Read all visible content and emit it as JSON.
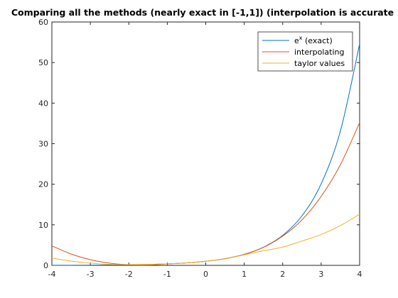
{
  "chart_data": {
    "type": "line",
    "title": "Comparing all the methods  (nearly exact in [-1,1]) (interpolation is accurate",
    "xlabel": "",
    "ylabel": "",
    "xlim": [
      -4,
      4
    ],
    "ylim": [
      0,
      60
    ],
    "xticks": [
      "-4",
      "-3",
      "-2",
      "-1",
      "0",
      "1",
      "2",
      "3",
      "4"
    ],
    "yticks": [
      "0",
      "10",
      "20",
      "30",
      "40",
      "50",
      "60"
    ],
    "grid": false,
    "legend_position": "top-right",
    "series": [
      {
        "name": "e^x (exact)",
        "legend_base": "e",
        "legend_sup": "x",
        "legend_rest": " (exact)",
        "color": "#0072BD",
        "x": [
          -4,
          -3.5,
          -3,
          -2.5,
          -2,
          -1.5,
          -1,
          -0.5,
          0,
          0.5,
          1,
          1.5,
          2,
          2.5,
          3,
          3.5,
          4
        ],
        "y": [
          0.018,
          0.03,
          0.05,
          0.082,
          0.135,
          0.223,
          0.368,
          0.607,
          1.0,
          1.65,
          2.72,
          4.48,
          7.39,
          12.2,
          20.1,
          33.1,
          54.6
        ]
      },
      {
        "name": "interpolating",
        "color": "#D95319",
        "x": [
          -4,
          -3.5,
          -3,
          -2.5,
          -2,
          -1.5,
          -1,
          -0.5,
          0,
          0.5,
          1,
          1.5,
          2,
          2.5,
          3,
          3.5,
          4
        ],
        "y": [
          4.8,
          2.8,
          1.4,
          0.55,
          0.15,
          0.08,
          0.37,
          0.61,
          1.0,
          1.65,
          2.72,
          4.45,
          7.2,
          11.2,
          17.0,
          24.8,
          35.2
        ]
      },
      {
        "name": "taylor values",
        "color": "#EDB120",
        "x": [
          -4,
          -3.5,
          -3,
          -2.5,
          -2,
          -1.5,
          -1,
          -0.5,
          0,
          0.5,
          1,
          1.5,
          2,
          2.5,
          3,
          3.5,
          4
        ],
        "y": [
          1.8,
          1.05,
          0.55,
          0.25,
          0.2,
          0.24,
          0.37,
          0.61,
          1.0,
          1.6,
          2.6,
          3.6,
          4.5,
          6.0,
          7.6,
          9.8,
          12.6
        ]
      }
    ]
  }
}
